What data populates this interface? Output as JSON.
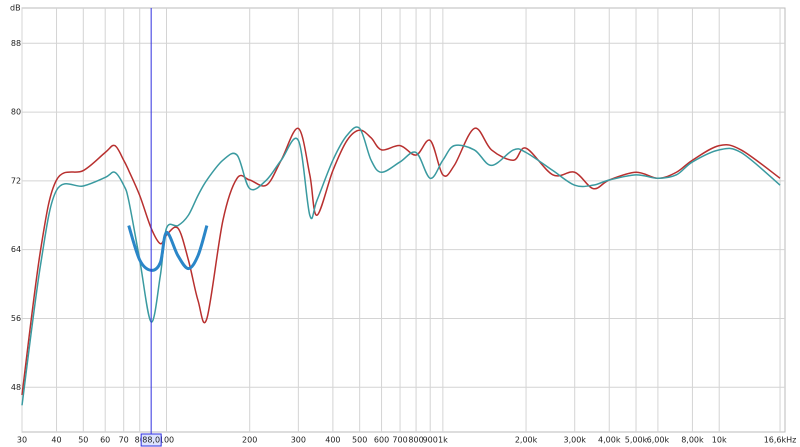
{
  "chart_data": {
    "type": "line",
    "y_unit": "dB",
    "x": [
      30,
      35,
      40,
      50,
      60,
      65,
      70,
      73,
      80,
      88,
      95,
      100,
      110,
      120,
      130,
      140,
      160,
      180,
      200,
      230,
      260,
      300,
      330,
      350,
      400,
      450,
      500,
      550,
      600,
      700,
      800,
      900,
      1000,
      1100,
      1300,
      1500,
      1800,
      2000,
      2500,
      3000,
      3500,
      4000,
      5000,
      6000,
      7000,
      8000,
      10000,
      12000,
      16600
    ],
    "series": [
      {
        "color": "#b8302f",
        "width": 1.5,
        "values": [
          47.1,
          63.9,
          72.1,
          73.2,
          75.3,
          76.1,
          74.4,
          73.2,
          70.3,
          66.5,
          64.7,
          65.7,
          66.5,
          62.8,
          58.1,
          56.0,
          67.4,
          72.3,
          72.1,
          71.5,
          74.4,
          78.1,
          72.7,
          68.0,
          73.2,
          76.7,
          77.9,
          77.0,
          75.6,
          76.1,
          75.0,
          76.7,
          72.7,
          73.8,
          78.1,
          75.6,
          74.4,
          75.8,
          72.7,
          73.0,
          71.1,
          72.1,
          73.0,
          72.3,
          73.0,
          74.4,
          76.1,
          75.6,
          72.3
        ]
      },
      {
        "color": "#3a9aa0",
        "width": 1.5,
        "values": [
          45.9,
          62.2,
          70.9,
          71.4,
          72.4,
          73.0,
          71.5,
          69.7,
          62.8,
          55.6,
          61.0,
          66.5,
          66.8,
          68.0,
          70.3,
          72.1,
          74.4,
          75.0,
          71.1,
          72.1,
          74.4,
          76.7,
          68.0,
          69.7,
          74.4,
          77.3,
          78.1,
          74.4,
          73.0,
          74.2,
          75.3,
          72.3,
          74.4,
          76.1,
          75.6,
          73.8,
          75.6,
          75.3,
          73.2,
          71.5,
          71.5,
          72.1,
          72.7,
          72.3,
          72.7,
          74.2,
          75.6,
          75.3,
          71.5
        ]
      },
      {
        "color": "#2a86c8",
        "width": 3,
        "values": [
          null,
          null,
          null,
          null,
          null,
          null,
          null,
          66.8,
          62.8,
          61.6,
          62.5,
          66.0,
          63.3,
          61.8,
          63.3,
          66.8,
          null,
          null,
          null,
          null,
          null,
          null,
          null,
          null,
          null,
          null,
          null,
          null,
          null,
          null,
          null,
          null,
          null,
          null,
          null,
          null,
          null,
          null,
          null,
          null,
          null,
          null,
          null,
          null,
          null,
          null,
          null,
          null,
          null
        ]
      }
    ],
    "xlim": [
      30,
      17300
    ],
    "xlog": true,
    "xticks": [
      30,
      40,
      50,
      60,
      70,
      80,
      100,
      200,
      300,
      400,
      500,
      600,
      700,
      800,
      900,
      {
        "value": 1000,
        "label": "1k"
      },
      {
        "value": 2000,
        "label": "2,00k"
      },
      {
        "value": 3000,
        "label": "3,00k"
      },
      {
        "value": 4000,
        "label": "4,00k"
      },
      {
        "value": 5000,
        "label": "5,00k"
      },
      {
        "value": 6000,
        "label": "6,00k"
      },
      {
        "value": 8000,
        "label": "8,00k"
      },
      {
        "value": 10000,
        "label": "10k"
      },
      {
        "value": 16600,
        "label": "16,6kHz"
      }
    ],
    "ylim": [
      42.8,
      92.1
    ],
    "yticks": [
      48,
      56,
      64,
      72,
      80,
      88
    ],
    "grid": true,
    "cursor": {
      "value": 88,
      "label": "88,0",
      "color": "#3030e0"
    }
  }
}
